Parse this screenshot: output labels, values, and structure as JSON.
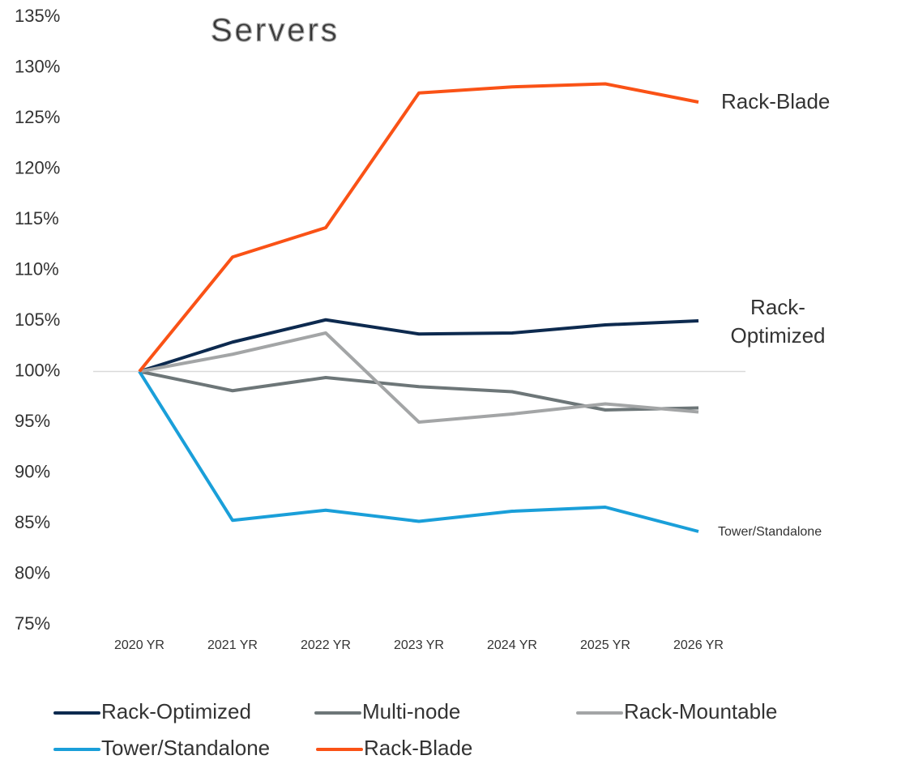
{
  "chart_data": {
    "type": "line",
    "title": "Servers",
    "categories": [
      "2020 YR",
      "2021 YR",
      "2022 YR",
      "2023 YR",
      "2024 YR",
      "2025 YR",
      "2026 YR"
    ],
    "series": [
      {
        "name": "Rack-Optimized",
        "color": "#0d2a4f",
        "values": [
          100,
          102.9,
          105.1,
          103.7,
          103.8,
          104.6,
          105.0
        ]
      },
      {
        "name": "Multi-node",
        "color": "#6d7678",
        "values": [
          100,
          98.1,
          99.4,
          98.5,
          98.0,
          96.2,
          96.4
        ]
      },
      {
        "name": "Rack-Mountable",
        "color": "#a3a5a6",
        "values": [
          100,
          101.7,
          103.8,
          95.0,
          95.8,
          96.8,
          96.0
        ]
      },
      {
        "name": "Tower/Standalone",
        "color": "#1a9fd9",
        "values": [
          100,
          85.3,
          86.3,
          85.2,
          86.2,
          86.6,
          84.2
        ]
      },
      {
        "name": "Rack-Blade",
        "color": "#fa5216",
        "values": [
          100,
          111.3,
          114.2,
          127.5,
          128.1,
          128.4,
          126.6
        ]
      }
    ],
    "ylim": [
      75,
      135
    ],
    "yticks": [
      {
        "value": 75,
        "label": "75%"
      },
      {
        "value": 80,
        "label": "80%"
      },
      {
        "value": 85,
        "label": "85%"
      },
      {
        "value": 90,
        "label": "90%"
      },
      {
        "value": 95,
        "label": "95%"
      },
      {
        "value": 100,
        "label": "100%"
      },
      {
        "value": 105,
        "label": "105%"
      },
      {
        "value": 110,
        "label": "110%"
      },
      {
        "value": 115,
        "label": "115%"
      },
      {
        "value": 120,
        "label": "120%"
      },
      {
        "value": 125,
        "label": "125%"
      },
      {
        "value": 130,
        "label": "130%"
      },
      {
        "value": 135,
        "label": "135%"
      }
    ],
    "reference_line": 100,
    "annotations": [
      "Rack-Blade",
      "Rack-",
      "Optimized",
      "Tower/Standalone"
    ],
    "legend": "bottom"
  }
}
